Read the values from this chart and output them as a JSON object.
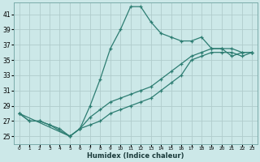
{
  "xlabel": "Humidex (Indice chaleur)",
  "bg_color": "#cce8e8",
  "line_color": "#2d7d72",
  "grid_color": "#b0cccc",
  "xlim": [
    -0.5,
    23.5
  ],
  "ylim": [
    24.0,
    42.5
  ],
  "xticks": [
    0,
    1,
    2,
    3,
    4,
    5,
    6,
    7,
    8,
    9,
    10,
    11,
    12,
    13,
    14,
    15,
    16,
    17,
    18,
    19,
    20,
    21,
    22,
    23
  ],
  "yticks": [
    25,
    27,
    29,
    31,
    33,
    35,
    37,
    39,
    41
  ],
  "curve1_x": [
    0,
    1,
    2,
    3,
    4,
    5,
    6,
    7,
    8,
    9,
    10,
    11,
    12,
    13,
    14,
    15,
    16,
    17,
    18,
    19,
    20,
    21,
    22,
    23
  ],
  "curve1_y": [
    28.0,
    27.0,
    27.0,
    26.5,
    26.0,
    25.0,
    26.0,
    29.0,
    32.5,
    36.5,
    39.0,
    42.0,
    42.0,
    40.0,
    38.5,
    38.0,
    37.5,
    37.5,
    38.0,
    36.5,
    36.5,
    35.5,
    36.0,
    36.0
  ],
  "curve2_x": [
    0,
    1,
    2,
    3,
    5,
    6,
    7,
    8,
    9,
    10,
    11,
    12,
    13,
    14,
    15,
    16,
    17,
    18,
    19,
    20,
    21,
    22,
    23
  ],
  "curve2_y": [
    28.0,
    27.0,
    27.0,
    26.5,
    25.0,
    26.0,
    26.5,
    27.0,
    28.0,
    28.5,
    29.0,
    29.5,
    30.0,
    31.0,
    32.0,
    33.0,
    35.0,
    35.5,
    36.0,
    36.0,
    36.0,
    35.5,
    36.0
  ],
  "curve3_x": [
    0,
    5,
    6,
    7,
    8,
    9,
    10,
    11,
    12,
    13,
    14,
    15,
    16,
    17,
    18,
    19,
    20,
    21,
    22,
    23
  ],
  "curve3_y": [
    28.0,
    25.0,
    26.0,
    27.5,
    28.5,
    29.5,
    30.0,
    30.5,
    31.0,
    31.5,
    32.5,
    33.5,
    34.5,
    35.5,
    36.0,
    36.5,
    36.5,
    36.5,
    36.0,
    36.0
  ]
}
